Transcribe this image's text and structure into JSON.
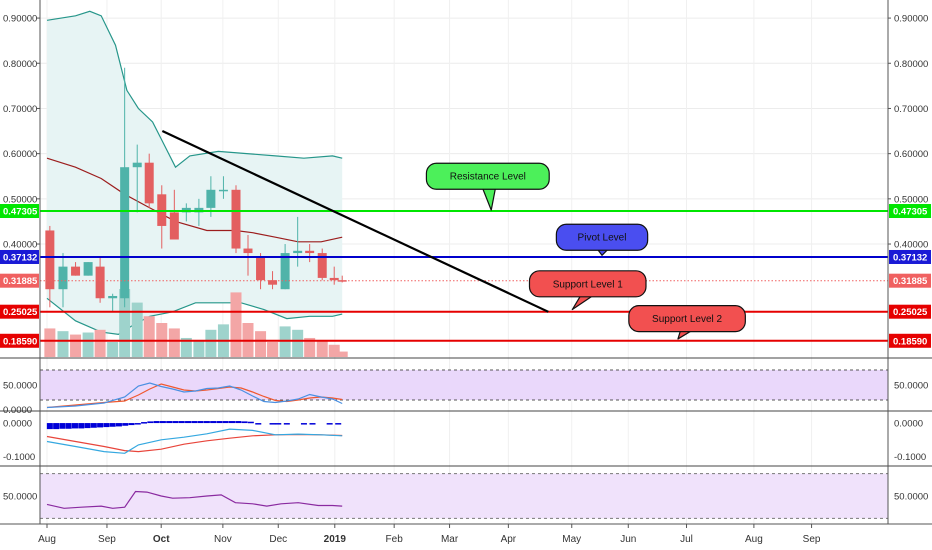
{
  "chart_data": {
    "type": "candlestick",
    "x_ticks": [
      {
        "label": "Aug",
        "t": 0,
        "bold": false
      },
      {
        "label": "Sep",
        "t": 1.05,
        "bold": false
      },
      {
        "label": "Oct",
        "t": 2.0,
        "bold": true
      },
      {
        "label": "Nov",
        "t": 3.08,
        "bold": false
      },
      {
        "label": "Dec",
        "t": 4.05,
        "bold": false
      },
      {
        "label": "2019",
        "t": 5.04,
        "bold": true
      },
      {
        "label": "Feb",
        "t": 6.08,
        "bold": false
      },
      {
        "label": "Mar",
        "t": 7.05,
        "bold": false
      },
      {
        "label": "Apr",
        "t": 8.08,
        "bold": false
      },
      {
        "label": "May",
        "t": 9.19,
        "bold": false
      },
      {
        "label": "Jun",
        "t": 10.18,
        "bold": false
      },
      {
        "label": "Jul",
        "t": 11.2,
        "bold": false
      },
      {
        "label": "Aug",
        "t": 12.38,
        "bold": false
      },
      {
        "label": "Sep",
        "t": 13.39,
        "bold": false
      }
    ],
    "price_axis": {
      "ylim": [
        0.15,
        0.94
      ],
      "ticks": [
        "0.90000",
        "0.80000",
        "0.70000",
        "0.60000",
        "0.50000",
        "0.40000"
      ],
      "tick_values": [
        0.9,
        0.8,
        0.7,
        0.6,
        0.5,
        0.4
      ]
    },
    "candles": [
      {
        "t": 0.05,
        "o": 0.43,
        "h": 0.44,
        "l": 0.26,
        "c": 0.3
      },
      {
        "t": 0.28,
        "o": 0.3,
        "h": 0.38,
        "l": 0.26,
        "c": 0.35
      },
      {
        "t": 0.5,
        "o": 0.35,
        "h": 0.36,
        "l": 0.33,
        "c": 0.33
      },
      {
        "t": 0.72,
        "o": 0.33,
        "h": 0.36,
        "l": 0.33,
        "c": 0.36
      },
      {
        "t": 0.93,
        "o": 0.35,
        "h": 0.37,
        "l": 0.27,
        "c": 0.28
      },
      {
        "t": 1.15,
        "o": 0.28,
        "h": 0.29,
        "l": 0.25,
        "c": 0.285
      },
      {
        "t": 1.36,
        "o": 0.28,
        "h": 0.79,
        "l": 0.26,
        "c": 0.57
      },
      {
        "t": 1.58,
        "o": 0.57,
        "h": 0.62,
        "l": 0.47,
        "c": 0.58
      },
      {
        "t": 1.79,
        "o": 0.58,
        "h": 0.6,
        "l": 0.48,
        "c": 0.49
      },
      {
        "t": 2.01,
        "o": 0.51,
        "h": 0.53,
        "l": 0.39,
        "c": 0.44
      },
      {
        "t": 2.23,
        "o": 0.47,
        "h": 0.52,
        "l": 0.41,
        "c": 0.41
      },
      {
        "t": 2.44,
        "o": 0.47,
        "h": 0.49,
        "l": 0.45,
        "c": 0.48
      },
      {
        "t": 2.66,
        "o": 0.47,
        "h": 0.5,
        "l": 0.44,
        "c": 0.48
      },
      {
        "t": 2.87,
        "o": 0.48,
        "h": 0.55,
        "l": 0.46,
        "c": 0.52
      },
      {
        "t": 3.09,
        "o": 0.52,
        "h": 0.55,
        "l": 0.5,
        "c": 0.52
      },
      {
        "t": 3.31,
        "o": 0.52,
        "h": 0.53,
        "l": 0.38,
        "c": 0.39
      },
      {
        "t": 3.52,
        "o": 0.39,
        "h": 0.42,
        "l": 0.33,
        "c": 0.38
      },
      {
        "t": 3.74,
        "o": 0.37,
        "h": 0.38,
        "l": 0.3,
        "c": 0.32
      },
      {
        "t": 3.95,
        "o": 0.32,
        "h": 0.34,
        "l": 0.3,
        "c": 0.31
      },
      {
        "t": 4.17,
        "o": 0.3,
        "h": 0.4,
        "l": 0.3,
        "c": 0.38
      },
      {
        "t": 4.39,
        "o": 0.38,
        "h": 0.46,
        "l": 0.35,
        "c": 0.385
      },
      {
        "t": 4.6,
        "o": 0.385,
        "h": 0.4,
        "l": 0.36,
        "c": 0.38
      },
      {
        "t": 4.82,
        "o": 0.38,
        "h": 0.39,
        "l": 0.32,
        "c": 0.325
      },
      {
        "t": 5.03,
        "o": 0.325,
        "h": 0.35,
        "l": 0.31,
        "c": 0.32
      },
      {
        "t": 5.17,
        "o": 0.32,
        "h": 0.33,
        "l": 0.315,
        "c": 0.319
      }
    ],
    "volume": [
      {
        "t": 0.05,
        "v": 0.42,
        "up": false
      },
      {
        "t": 0.28,
        "v": 0.38,
        "up": true
      },
      {
        "t": 0.5,
        "v": 0.33,
        "up": false
      },
      {
        "t": 0.72,
        "v": 0.36,
        "up": true
      },
      {
        "t": 0.93,
        "v": 0.4,
        "up": false
      },
      {
        "t": 1.15,
        "v": 0.22,
        "up": true
      },
      {
        "t": 1.36,
        "v": 1.0,
        "up": true
      },
      {
        "t": 1.58,
        "v": 0.8,
        "up": true
      },
      {
        "t": 1.79,
        "v": 0.6,
        "up": false
      },
      {
        "t": 2.01,
        "v": 0.5,
        "up": false
      },
      {
        "t": 2.23,
        "v": 0.42,
        "up": false
      },
      {
        "t": 2.44,
        "v": 0.28,
        "up": true
      },
      {
        "t": 2.66,
        "v": 0.25,
        "up": true
      },
      {
        "t": 2.87,
        "v": 0.4,
        "up": true
      },
      {
        "t": 3.09,
        "v": 0.48,
        "up": true
      },
      {
        "t": 3.31,
        "v": 0.95,
        "up": false
      },
      {
        "t": 3.52,
        "v": 0.5,
        "up": false
      },
      {
        "t": 3.74,
        "v": 0.38,
        "up": false
      },
      {
        "t": 3.95,
        "v": 0.22,
        "up": false
      },
      {
        "t": 4.17,
        "v": 0.45,
        "up": true
      },
      {
        "t": 4.39,
        "v": 0.4,
        "up": true
      },
      {
        "t": 4.6,
        "v": 0.28,
        "up": false
      },
      {
        "t": 4.82,
        "v": 0.25,
        "up": false
      },
      {
        "t": 5.03,
        "v": 0.18,
        "up": false
      },
      {
        "t": 5.17,
        "v": 0.08,
        "up": false
      }
    ],
    "bollinger": {
      "upper": [
        [
          0,
          0.895
        ],
        [
          0.5,
          0.905
        ],
        [
          0.75,
          0.915
        ],
        [
          0.95,
          0.905
        ],
        [
          1.2,
          0.84
        ],
        [
          1.4,
          0.74
        ],
        [
          1.6,
          0.7
        ],
        [
          1.85,
          0.67
        ],
        [
          2.05,
          0.62
        ],
        [
          2.25,
          0.57
        ],
        [
          2.5,
          0.595
        ],
        [
          3.0,
          0.605
        ],
        [
          3.5,
          0.6
        ],
        [
          4.0,
          0.595
        ],
        [
          4.5,
          0.59
        ],
        [
          5.0,
          0.595
        ],
        [
          5.17,
          0.59
        ]
      ],
      "basis": [
        [
          0,
          0.59
        ],
        [
          0.5,
          0.57
        ],
        [
          0.95,
          0.545
        ],
        [
          1.36,
          0.51
        ],
        [
          1.8,
          0.48
        ],
        [
          2.25,
          0.45
        ],
        [
          2.8,
          0.43
        ],
        [
          3.3,
          0.43
        ],
        [
          3.6,
          0.425
        ],
        [
          4.0,
          0.415
        ],
        [
          4.4,
          0.405
        ],
        [
          4.8,
          0.405
        ],
        [
          5.17,
          0.415
        ]
      ],
      "lower": [
        [
          0,
          0.28
        ],
        [
          0.5,
          0.23
        ],
        [
          0.95,
          0.205
        ],
        [
          1.25,
          0.2
        ],
        [
          1.5,
          0.22
        ],
        [
          1.8,
          0.24
        ],
        [
          2.2,
          0.25
        ],
        [
          2.6,
          0.27
        ],
        [
          3.0,
          0.27
        ],
        [
          3.4,
          0.27
        ],
        [
          3.8,
          0.255
        ],
        [
          4.2,
          0.235
        ],
        [
          4.6,
          0.24
        ],
        [
          5.0,
          0.24
        ],
        [
          5.17,
          0.245
        ]
      ]
    },
    "trendline": {
      "from": [
        2.02,
        0.65
      ],
      "to": [
        8.78,
        0.25
      ]
    },
    "levels": [
      {
        "name": "Resistance Level",
        "value": 0.47305,
        "label": "0.47305",
        "color": "#00e600",
        "badge_color": "#00e600",
        "callout_color": "#4cf05a",
        "callout_t": 7.72,
        "callout_price": 0.55,
        "tip_t": 7.78,
        "tip_price": 0.475
      },
      {
        "name": "Pivot Level",
        "value": 0.37132,
        "label": "0.37132",
        "color": "#0000cc",
        "badge_color": "#1a1ad6",
        "callout_color": "#4a4ef0",
        "callout_t": 9.72,
        "callout_price": 0.415,
        "tip_t": 9.72,
        "tip_price": 0.375
      },
      {
        "name": "Support Level 1",
        "value": 0.25025,
        "label": "0.25025",
        "color": "#e60000",
        "badge_color": "#e60000",
        "callout_color": "#f25050",
        "callout_t": 9.47,
        "callout_price": 0.312,
        "tip_t": 9.2,
        "tip_price": 0.255
      },
      {
        "name": "Support Level 2",
        "value": 0.1859,
        "label": "0.18590",
        "color": "#e60000",
        "badge_color": "#e60000",
        "callout_color": "#f25050",
        "callout_t": 11.21,
        "callout_price": 0.235,
        "tip_t": 11.05,
        "tip_price": 0.19
      }
    ],
    "last_price": {
      "value": 0.31885,
      "label": "0.31885",
      "color": "#f06060"
    },
    "rsi": {
      "ylim": [
        0,
        100
      ],
      "tick_label": "50.0000",
      "tick_value": 50,
      "band": [
        20,
        80
      ],
      "fast": [
        [
          0,
          5
        ],
        [
          0.5,
          8
        ],
        [
          1.0,
          14
        ],
        [
          1.36,
          26
        ],
        [
          1.6,
          48
        ],
        [
          1.8,
          54
        ],
        [
          2.0,
          47
        ],
        [
          2.2,
          42
        ],
        [
          2.4,
          36
        ],
        [
          2.6,
          38
        ],
        [
          2.8,
          43
        ],
        [
          3.0,
          44
        ],
        [
          3.2,
          48
        ],
        [
          3.4,
          40
        ],
        [
          3.6,
          28
        ],
        [
          3.8,
          17
        ],
        [
          4.0,
          15
        ],
        [
          4.2,
          18
        ],
        [
          4.4,
          22
        ],
        [
          4.6,
          31
        ],
        [
          4.8,
          26
        ],
        [
          5.0,
          22
        ],
        [
          5.17,
          13
        ]
      ],
      "slow": [
        [
          0,
          5
        ],
        [
          0.5,
          10
        ],
        [
          1.0,
          15
        ],
        [
          1.36,
          18
        ],
        [
          1.6,
          30
        ],
        [
          1.8,
          42
        ],
        [
          2.0,
          52
        ],
        [
          2.2,
          46
        ],
        [
          2.4,
          40
        ],
        [
          2.6,
          38
        ],
        [
          2.8,
          40
        ],
        [
          3.0,
          43
        ],
        [
          3.2,
          46
        ],
        [
          3.4,
          44
        ],
        [
          3.6,
          36
        ],
        [
          3.8,
          27
        ],
        [
          4.0,
          19
        ],
        [
          4.2,
          17
        ],
        [
          4.4,
          20
        ],
        [
          4.6,
          24
        ],
        [
          4.8,
          26
        ],
        [
          5.0,
          24
        ],
        [
          5.17,
          21
        ]
      ]
    },
    "macd": {
      "ylim": [
        -0.125,
        0.03
      ],
      "tick_labels": [
        "0.0000",
        "-0.1000"
      ],
      "tick_values": [
        0.0,
        -0.1
      ],
      "hist": [
        [
          0.05,
          -0.018
        ],
        [
          0.16,
          -0.018
        ],
        [
          0.27,
          -0.017
        ],
        [
          0.38,
          -0.017
        ],
        [
          0.49,
          -0.016
        ],
        [
          0.6,
          -0.016
        ],
        [
          0.71,
          -0.015
        ],
        [
          0.82,
          -0.014
        ],
        [
          0.93,
          -0.013
        ],
        [
          1.04,
          -0.012
        ],
        [
          1.15,
          -0.011
        ],
        [
          1.26,
          -0.01
        ],
        [
          1.37,
          -0.008
        ],
        [
          1.48,
          -0.006
        ],
        [
          1.59,
          -0.004
        ],
        [
          1.7,
          0.003
        ],
        [
          1.81,
          0.005
        ],
        [
          1.92,
          0.006
        ],
        [
          2.03,
          0.006
        ],
        [
          2.14,
          0.006
        ],
        [
          2.25,
          0.006
        ],
        [
          2.36,
          0.006
        ],
        [
          2.47,
          0.006
        ],
        [
          2.58,
          0.006
        ],
        [
          2.69,
          0.006
        ],
        [
          2.8,
          0.006
        ],
        [
          2.91,
          0.006
        ],
        [
          3.02,
          0.006
        ],
        [
          3.13,
          0.006
        ],
        [
          3.24,
          0.006
        ],
        [
          3.35,
          0.006
        ],
        [
          3.46,
          0.005
        ],
        [
          3.57,
          0.004
        ],
        [
          3.7,
          -0.002
        ],
        [
          3.95,
          -0.002
        ],
        [
          4.05,
          -0.002
        ],
        [
          4.2,
          -0.002
        ],
        [
          4.5,
          -0.002
        ],
        [
          4.65,
          -0.002
        ],
        [
          4.95,
          -0.002
        ],
        [
          5.1,
          -0.002
        ]
      ],
      "macd_line": [
        [
          0,
          -0.055
        ],
        [
          0.5,
          -0.07
        ],
        [
          1.0,
          -0.085
        ],
        [
          1.36,
          -0.09
        ],
        [
          1.6,
          -0.065
        ],
        [
          2.0,
          -0.05
        ],
        [
          2.4,
          -0.042
        ],
        [
          2.8,
          -0.032
        ],
        [
          3.2,
          -0.018
        ],
        [
          3.6,
          -0.022
        ],
        [
          4.0,
          -0.035
        ],
        [
          4.4,
          -0.033
        ],
        [
          4.8,
          -0.035
        ],
        [
          5.17,
          -0.038
        ]
      ],
      "signal_line": [
        [
          0,
          -0.04
        ],
        [
          0.5,
          -0.055
        ],
        [
          1.0,
          -0.07
        ],
        [
          1.36,
          -0.082
        ],
        [
          1.6,
          -0.085
        ],
        [
          2.0,
          -0.078
        ],
        [
          2.4,
          -0.063
        ],
        [
          2.8,
          -0.053
        ],
        [
          3.2,
          -0.045
        ],
        [
          3.6,
          -0.038
        ],
        [
          4.0,
          -0.035
        ],
        [
          4.4,
          -0.034
        ],
        [
          4.8,
          -0.035
        ],
        [
          5.17,
          -0.037
        ]
      ]
    },
    "osc": {
      "ylim": [
        0,
        100
      ],
      "tick_label": "50.0000",
      "tick_value": 50,
      "band": [
        10,
        90
      ],
      "line": [
        [
          0,
          35
        ],
        [
          0.3,
          28
        ],
        [
          0.6,
          30
        ],
        [
          0.95,
          32
        ],
        [
          1.15,
          28
        ],
        [
          1.36,
          30
        ],
        [
          1.55,
          58
        ],
        [
          1.75,
          57
        ],
        [
          2.0,
          50
        ],
        [
          2.2,
          46
        ],
        [
          2.5,
          47
        ],
        [
          2.8,
          50
        ],
        [
          3.05,
          52
        ],
        [
          3.3,
          38
        ],
        [
          3.6,
          36
        ],
        [
          3.85,
          32
        ],
        [
          4.1,
          36
        ],
        [
          4.4,
          38
        ],
        [
          4.75,
          33
        ],
        [
          5.0,
          33
        ],
        [
          5.17,
          32
        ]
      ]
    },
    "colors": {
      "up": "#4fb3a9",
      "down": "#e35f60",
      "vol_up": "#9ed3cc",
      "vol_down": "#f3a6a6",
      "bb_line": "#26968a",
      "bb_basis": "#9c1d1d",
      "bb_fill": "#e7f4f4",
      "rsi_bg": "#ead8fb",
      "rsi_fast": "#4a90e2",
      "rsi_slow": "#f0582f",
      "macd_hist": "#0000d8",
      "macd_line": "#35a8e0",
      "signal_line": "#e8453b",
      "osc_bg": "#f0e2fb",
      "osc_line": "#8a2aa0"
    }
  }
}
